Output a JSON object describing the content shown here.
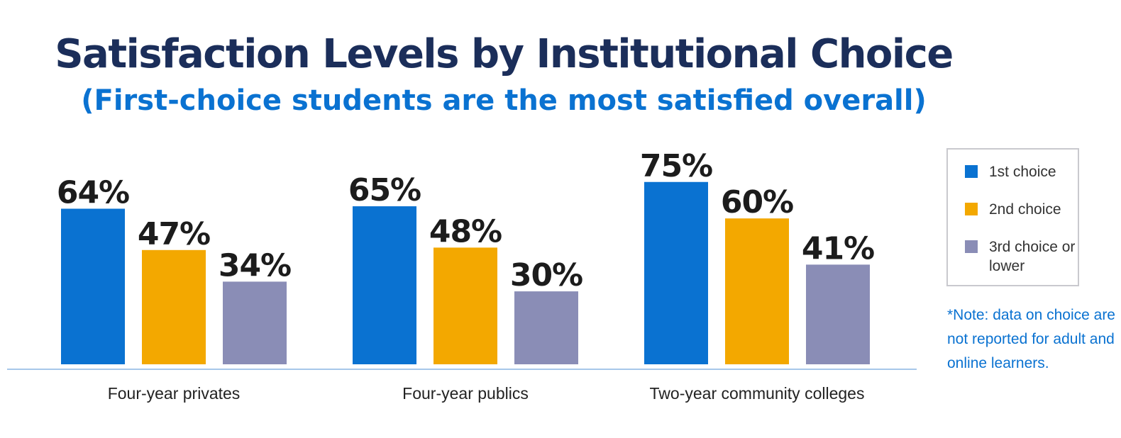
{
  "title": "Satisfaction Levels by Institutional Choice",
  "subtitle": "(First-choice students are the most satisfied overall)",
  "colors": {
    "title": "#1b2e5a",
    "subtitle": "#0a72d1",
    "first_choice": "#0a72d1",
    "second_choice": "#f3a800",
    "third_choice": "#8a8db6",
    "baseline": "#a7c7ea",
    "value_label": "#1c1c1c",
    "category_label": "#222222",
    "note": "#0a72d1"
  },
  "legend": {
    "items": [
      {
        "label": "1st choice",
        "color": "#0a72d1"
      },
      {
        "label": "2nd choice",
        "color": "#f3a800"
      },
      {
        "label": "3rd choice or lower",
        "color": "#8a8db6"
      }
    ]
  },
  "note": "*Note: data on choice are not reported for adult and online learners.",
  "chart_data": {
    "type": "bar",
    "title": "Satisfaction Levels by Institutional Choice",
    "subtitle": "(First-choice students are the most satisfied overall)",
    "categories": [
      "Four-year privates",
      "Four-year publics",
      "Two-year community colleges"
    ],
    "series": [
      {
        "name": "1st choice",
        "values": [
          64,
          65,
          75
        ],
        "labels": [
          "64%",
          "65%",
          "75%"
        ]
      },
      {
        "name": "2nd choice",
        "values": [
          47,
          48,
          60
        ],
        "labels": [
          "47%",
          "48%",
          "60%"
        ]
      },
      {
        "name": "3rd choice or lower",
        "values": [
          34,
          30,
          41
        ],
        "labels": [
          "34%",
          "30%",
          "41%"
        ]
      }
    ],
    "xlabel": "",
    "ylabel": "",
    "ylim": [
      0,
      100
    ],
    "grid": false,
    "legend_position": "right"
  }
}
